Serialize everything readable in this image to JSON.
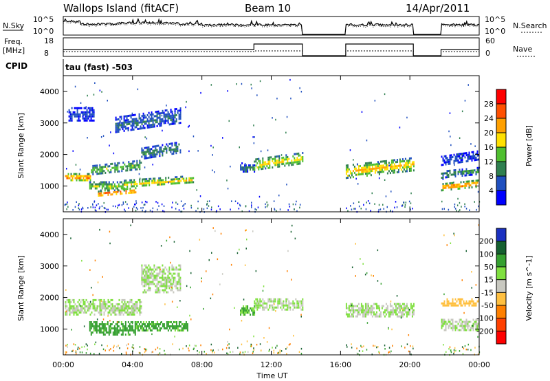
{
  "header": {
    "station": "Wallops Island (fitACF)",
    "beam": "Beam 10",
    "date": "14/Apr/2011"
  },
  "strips": {
    "nsky_label": "N.Sky",
    "nsearch_label": "N.Search",
    "freq_label": "Freq.",
    "freq_unit": "[MHz]",
    "nave_label": "Nave",
    "cpid_label": "CPID",
    "cpid_value": "tau (fast) -503",
    "noise_ticks": [
      "10^5",
      "10^0"
    ],
    "freq_ticks": [
      "18",
      "8"
    ],
    "nave_ticks": [
      "60",
      "0"
    ]
  },
  "colors": {
    "power": [
      "#0000ff",
      "#1f4fbf",
      "#2f7f4f",
      "#4fbf2f",
      "#ffe000",
      "#ffa000",
      "#ff5000",
      "#ff0000"
    ],
    "velocity": [
      "#1a30c0",
      "#156030",
      "#35a030",
      "#80e040",
      "#c8c8c0",
      "#ffc040",
      "#ff8000",
      "#ff4000",
      "#ff0000"
    ]
  },
  "chart_data": [
    {
      "type": "heatmap",
      "name": "power-panel",
      "xlabel": "Time UT",
      "ylabel": "Slant Range [km]",
      "xlim": [
        0,
        24
      ],
      "ylim": [
        180,
        4500
      ],
      "x_ticks": [
        "00:00",
        "04:00",
        "08:00",
        "12:00",
        "16:00",
        "20:00",
        "00:00"
      ],
      "y_ticks": [
        1000,
        2000,
        3000,
        4000
      ],
      "colorbar": {
        "label": "Power [dB]",
        "ticks": [
          4,
          8,
          12,
          16,
          20,
          24,
          28
        ],
        "range": [
          0,
          32
        ]
      },
      "data_gaps_ut": [
        [
          13.8,
          16.3
        ],
        [
          20.2,
          21.8
        ]
      ],
      "echo_regions": [
        {
          "t0": 0.1,
          "t1": 1.6,
          "r_center": 1300,
          "r_width": 220,
          "power": 25
        },
        {
          "t0": 1.6,
          "t1": 4.5,
          "r_center": 1600,
          "r_width": 300,
          "power": 15
        },
        {
          "t0": 4.5,
          "t1": 6.8,
          "r_center": 2150,
          "r_width": 350,
          "power": 10
        },
        {
          "t0": 3.0,
          "t1": 6.8,
          "r_center": 3100,
          "r_width": 500,
          "power": 8
        },
        {
          "t0": 0.3,
          "t1": 1.8,
          "r_center": 3300,
          "r_width": 400,
          "power": 5
        },
        {
          "t0": 1.5,
          "t1": 3.5,
          "r_center": 1000,
          "r_width": 300,
          "power": 16
        },
        {
          "t0": 2.0,
          "t1": 4.2,
          "r_center": 820,
          "r_width": 180,
          "power": 28
        },
        {
          "t0": 3.5,
          "t1": 7.5,
          "r_center": 1150,
          "r_width": 250,
          "power": 19
        },
        {
          "t0": 10.2,
          "t1": 11.0,
          "r_center": 1600,
          "r_width": 300,
          "power": 9
        },
        {
          "t0": 11.0,
          "t1": 13.8,
          "r_center": 1800,
          "r_width": 350,
          "power": 19
        },
        {
          "t0": 16.3,
          "t1": 20.2,
          "r_center": 1600,
          "r_width": 400,
          "power": 21
        },
        {
          "t0": 21.8,
          "t1": 24.0,
          "r_center": 1050,
          "r_width": 200,
          "power": 26
        },
        {
          "t0": 21.8,
          "t1": 24.0,
          "r_center": 1450,
          "r_width": 200,
          "power": 12
        },
        {
          "t0": 21.8,
          "t1": 24.0,
          "r_center": 1900,
          "r_width": 300,
          "power": 6
        }
      ]
    },
    {
      "type": "heatmap",
      "name": "velocity-panel",
      "xlabel": "Time UT",
      "ylabel": "Slant Range [km]",
      "xlim": [
        0,
        24
      ],
      "ylim": [
        180,
        4500
      ],
      "x_ticks": [
        "00:00",
        "04:00",
        "08:00",
        "12:00",
        "16:00",
        "20:00",
        "00:00"
      ],
      "y_ticks": [
        1000,
        2000,
        3000,
        4000
      ],
      "colorbar": {
        "label": "Velocity [m s^-1]",
        "ticks": [
          200,
          100,
          50,
          15,
          -15,
          -50,
          -100,
          -200
        ],
        "range": [
          -250,
          250
        ]
      },
      "echo_regions": [
        {
          "t0": 0.1,
          "t1": 4.5,
          "r_center": 1700,
          "r_width": 500,
          "velocity": 0
        },
        {
          "t0": 4.5,
          "t1": 6.8,
          "r_center": 2600,
          "r_width": 900,
          "velocity": 0
        },
        {
          "t0": 1.5,
          "t1": 4.2,
          "r_center": 1050,
          "r_width": 400,
          "velocity": 45
        },
        {
          "t0": 4.2,
          "t1": 7.2,
          "r_center": 1100,
          "r_width": 300,
          "velocity": 40
        },
        {
          "t0": 10.2,
          "t1": 11.0,
          "r_center": 1600,
          "r_width": 300,
          "velocity": 30
        },
        {
          "t0": 11.0,
          "t1": 13.8,
          "r_center": 1800,
          "r_width": 350,
          "velocity": 0
        },
        {
          "t0": 16.3,
          "t1": 20.2,
          "r_center": 1600,
          "r_width": 450,
          "velocity": 0
        },
        {
          "t0": 21.8,
          "t1": 24.0,
          "r_center": 1150,
          "r_width": 350,
          "velocity": 0
        },
        {
          "t0": 21.8,
          "t1": 24.0,
          "r_center": 1850,
          "r_width": 250,
          "velocity": -60
        }
      ]
    }
  ]
}
